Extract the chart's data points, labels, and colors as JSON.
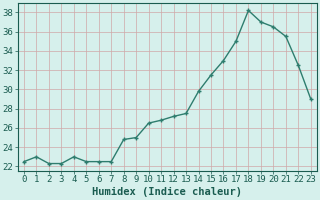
{
  "x": [
    0,
    1,
    2,
    3,
    4,
    5,
    6,
    7,
    8,
    9,
    10,
    11,
    12,
    13,
    14,
    15,
    16,
    17,
    18,
    19,
    20,
    21,
    22,
    23
  ],
  "y": [
    22.5,
    23.0,
    22.3,
    22.3,
    23.0,
    22.5,
    22.5,
    22.5,
    24.8,
    25.0,
    26.5,
    26.8,
    27.2,
    27.5,
    29.8,
    31.5,
    33.0,
    35.0,
    38.2,
    37.0,
    36.5,
    35.5,
    32.5,
    29.0
  ],
  "line_color": "#2e7d6e",
  "bg_color": "#d6f0ec",
  "grid_color_major": "#c4e0db",
  "grid_color_minor": "#c4e0db",
  "xlabel": "Humidex (Indice chaleur)",
  "ylim": [
    21.5,
    39.0
  ],
  "xlim": [
    -0.5,
    23.5
  ],
  "yticks": [
    22,
    24,
    26,
    28,
    30,
    32,
    34,
    36,
    38
  ],
  "xticks": [
    0,
    1,
    2,
    3,
    4,
    5,
    6,
    7,
    8,
    9,
    10,
    11,
    12,
    13,
    14,
    15,
    16,
    17,
    18,
    19,
    20,
    21,
    22,
    23
  ],
  "marker_size": 2.5,
  "line_width": 1.0,
  "xlabel_fontsize": 7.5,
  "tick_fontsize": 6.5,
  "text_color": "#1a5c50"
}
